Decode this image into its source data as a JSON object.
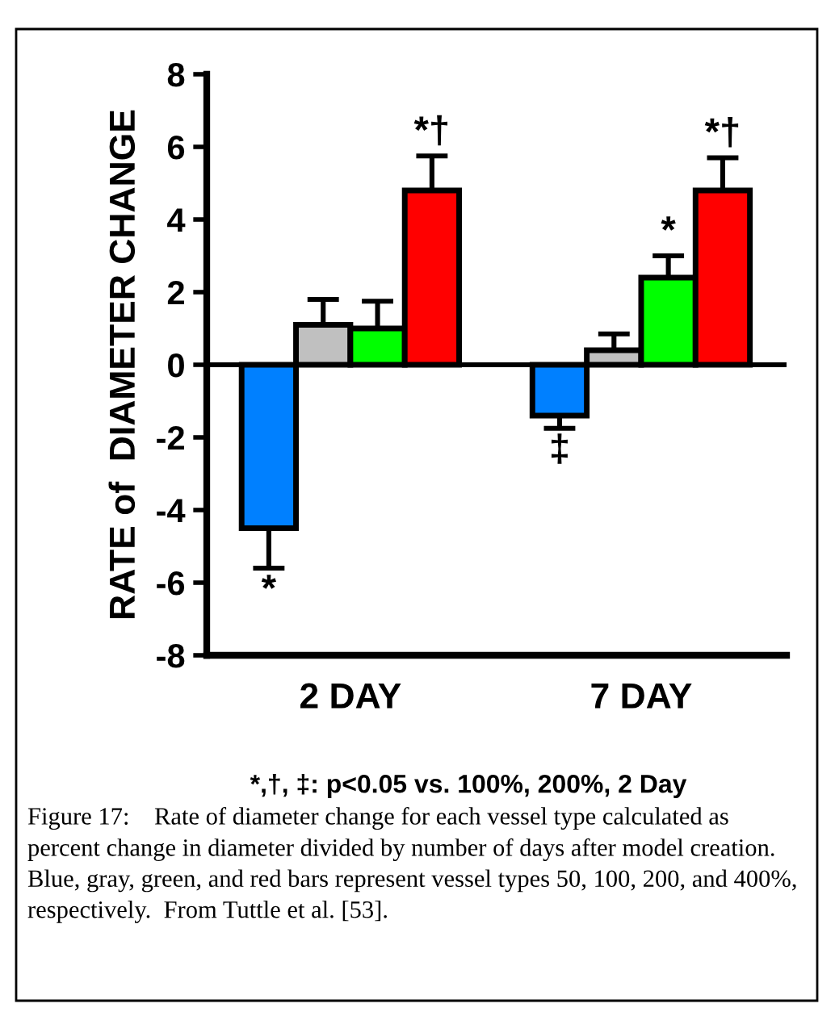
{
  "chart_data": {
    "type": "bar",
    "ylabel": "RATE of  DIAMETER CHANGE",
    "categories": [
      "2 DAY",
      "7 DAY"
    ],
    "series": [
      {
        "color": "#0080ff",
        "values": [
          -4.5,
          -1.4
        ],
        "errors": [
          [
            -5.6,
            -4.5
          ],
          [
            -1.75,
            -1.4
          ]
        ],
        "value_labels": [
          "*",
          "‡"
        ]
      },
      {
        "color": "#c0c0c0",
        "values": [
          1.1,
          0.4
        ],
        "errors": [
          [
            1.1,
            1.8
          ],
          [
            0.4,
            0.85
          ]
        ],
        "value_labels": [
          null,
          null
        ]
      },
      {
        "color": "#00ff00",
        "values": [
          1.0,
          2.4
        ],
        "errors": [
          [
            1.0,
            1.75
          ],
          [
            2.4,
            3.0
          ]
        ],
        "value_labels": [
          null,
          "*"
        ]
      },
      {
        "color": "#ff0000",
        "values": [
          4.8,
          4.8
        ],
        "errors": [
          [
            4.8,
            5.75
          ],
          [
            4.8,
            5.7
          ]
        ],
        "value_labels": [
          "*†",
          "*†"
        ]
      }
    ],
    "ylim": [
      -8,
      8
    ],
    "yticks": [
      -8,
      -6,
      -4,
      -2,
      0,
      2,
      4,
      6,
      8
    ],
    "ref_lines": [
      {
        "axis": "y",
        "value": 0,
        "color": "#000000"
      }
    ],
    "grid": false,
    "legend": false,
    "annotations": [
      "*,†, ‡: p<0.05 vs. 100%, 200%, 2 Day",
      "Figure 17:    Rate of diameter change for each vessel type calculated as percent change in diameter divided by number of days after model creation.  Blue, gray, green, and red bars represent vessel types 50, 100, 200, and 400%, respectively.  From Tuttle et al. [53]."
    ]
  }
}
